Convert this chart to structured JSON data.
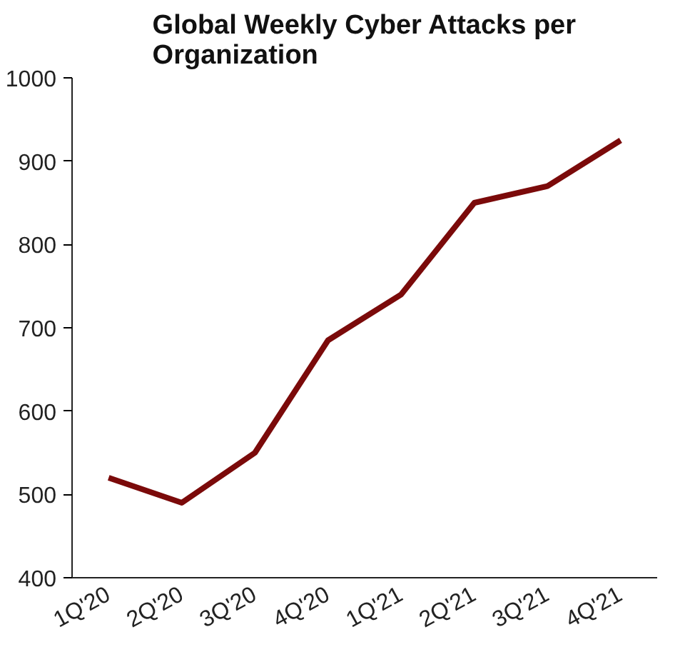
{
  "chart_data": {
    "type": "line",
    "title": "Global Weekly Cyber Attacks per\nOrganization",
    "categories": [
      "1Q'20",
      "2Q'20",
      "3Q'20",
      "4Q'20",
      "1Q'21",
      "2Q'21",
      "3Q'21",
      "4Q'21"
    ],
    "series": [
      {
        "color": "#7b0a0a",
        "values": [
          520,
          490,
          550,
          685,
          740,
          850,
          870,
          925
        ]
      }
    ],
    "ylim": [
      400,
      1000
    ],
    "yticks": [
      400,
      500,
      600,
      700,
      800,
      900,
      1000
    ],
    "grid": false,
    "marker": "none",
    "line_style": "solid"
  }
}
